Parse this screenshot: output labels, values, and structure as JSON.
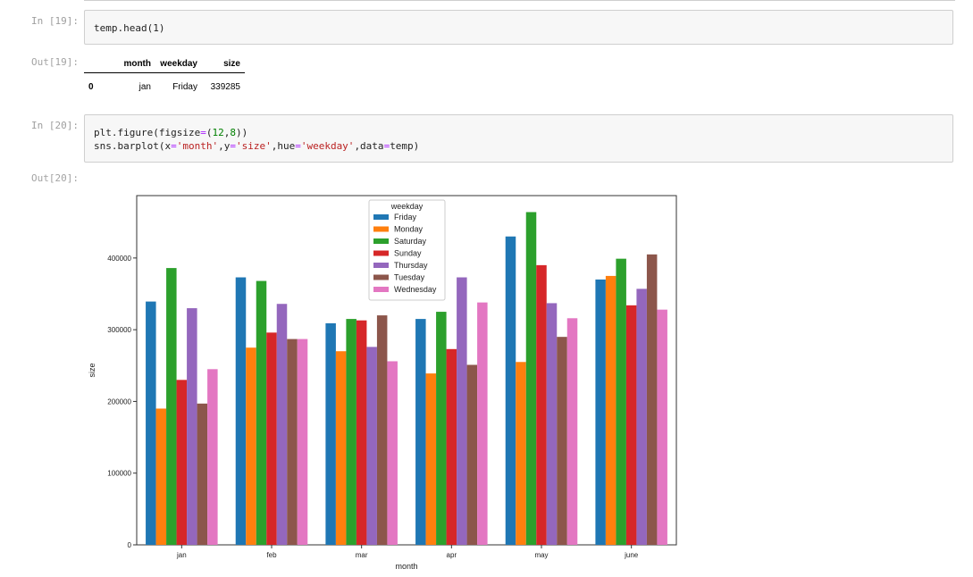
{
  "cells": [
    {
      "in_prompt": "In [19]:",
      "code": "temp.head(1)",
      "out_prompt": "Out[19]:"
    },
    {
      "in_prompt": "In [20]:",
      "code_line1": "plt.figure(figsize=(12,8))",
      "code_line2": "sns.barplot(x='month',y='size',hue='weekday',data=temp)",
      "out_prompt": "Out[20]:"
    }
  ],
  "dataframe": {
    "columns": [
      "month",
      "weekday",
      "size"
    ],
    "rows": [
      {
        "index": "0",
        "month": "jan",
        "weekday": "Friday",
        "size": "339285"
      }
    ]
  },
  "chart_data": {
    "type": "bar",
    "xlabel": "month",
    "ylabel": "size",
    "ylim": [
      0,
      487000
    ],
    "yticks": [
      "0",
      "100000",
      "200000",
      "300000",
      "400000"
    ],
    "categories": [
      "jan",
      "feb",
      "mar",
      "apr",
      "may",
      "june"
    ],
    "legend_title": "weekday",
    "legend_position": "top-center",
    "series": [
      {
        "name": "Friday",
        "color": "#1f77b4",
        "values": [
          339285,
          373000,
          309000,
          315000,
          430000,
          370000
        ]
      },
      {
        "name": "Monday",
        "color": "#ff7f0e",
        "values": [
          190000,
          275000,
          270000,
          239000,
          255000,
          375000
        ]
      },
      {
        "name": "Saturday",
        "color": "#2ca02c",
        "values": [
          386000,
          368000,
          315000,
          325000,
          464000,
          399000
        ]
      },
      {
        "name": "Sunday",
        "color": "#d62728",
        "values": [
          230000,
          296000,
          313000,
          273000,
          390000,
          334000
        ]
      },
      {
        "name": "Thursday",
        "color": "#9467bd",
        "values": [
          330000,
          336000,
          276000,
          373000,
          337000,
          357000
        ]
      },
      {
        "name": "Tuesday",
        "color": "#8c564b",
        "values": [
          197000,
          287000,
          320000,
          251000,
          290000,
          405000
        ]
      },
      {
        "name": "Wednesday",
        "color": "#e377c2",
        "values": [
          245000,
          287000,
          256000,
          338000,
          316000,
          328000
        ]
      }
    ]
  }
}
